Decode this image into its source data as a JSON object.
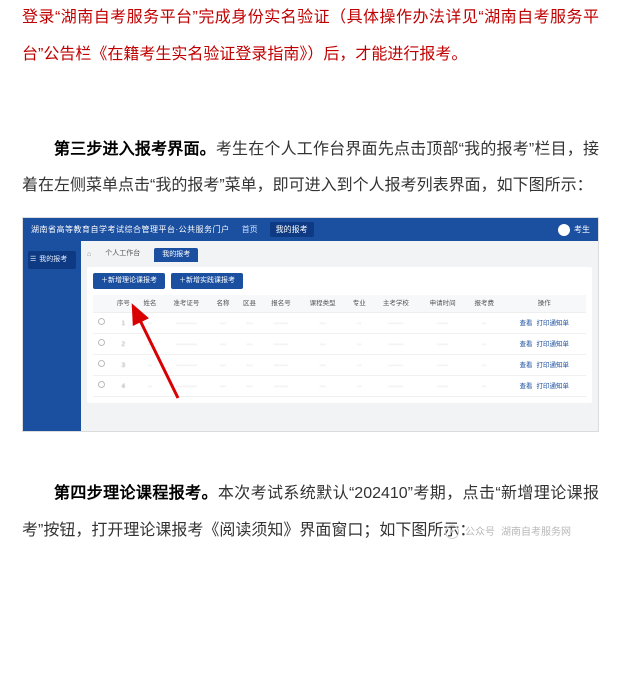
{
  "intro_red": "登录“湖南自考服务平台”完成身份实名验证（具体操作办法详见“湖南自考服务平台”公告栏《在籍考生实名验证登录指南》）后，才能进行报考。",
  "step3": {
    "title": "第三步进入报考界面。",
    "body": "考生在个人工作台界面先点击顶部“我的报考”栏目，接着在左侧菜单点击“我的报考”菜单，即可进入到个人报考列表界面，如下图所示："
  },
  "step4": {
    "title": "第四步理论课程报考。",
    "body": "本次考试系统默认“202410”考期，点击“新增理论课报考”按钮，打开理论课报考《阅读须知》界面窗口；如下图所示："
  },
  "shot": {
    "platform_title": "湖南省高等教育自学考试综合管理平台·公共服务门户",
    "top_nav": [
      "首页",
      "我的报考"
    ],
    "avatar_name": "考生",
    "side_item": "我的报考",
    "crumb_tab1": "个人工作台",
    "crumb_tab2": "我的报考",
    "btn1": "＋新增理论课报考",
    "btn2": "＋新增实践课报考",
    "columns": [
      "序号",
      "姓名",
      "准考证号",
      "名称",
      "区县",
      "报名号",
      "课程类型",
      "专业",
      "主考学校",
      "申请时间",
      "报考费",
      "操作"
    ],
    "rows": [
      [
        "1",
        "··",
        "··········",
        "···",
        "···",
        "·······",
        "···",
        "··",
        "·······",
        "·····",
        "··",
        "查看  打印通知单"
      ],
      [
        "2",
        "··",
        "··········",
        "···",
        "···",
        "·······",
        "···",
        "··",
        "·······",
        "·····",
        "··",
        "查看  打印通知单"
      ],
      [
        "3",
        "··",
        "··········",
        "···",
        "···",
        "·······",
        "···",
        "··",
        "·······",
        "·····",
        "··",
        "查看  打印通知单"
      ],
      [
        "4",
        "··",
        "··········",
        "···",
        "···",
        "·······",
        "···",
        "··",
        "·······",
        "·····",
        "··",
        "查看  打印通知单"
      ]
    ],
    "op_view": "查看",
    "op_print": "打印通知单"
  },
  "watermark": {
    "label": "公众号",
    "name": "湖南自考服务网"
  },
  "colors": {
    "red": "#c00000",
    "blue": "#1b4fa0",
    "text": "#333333",
    "gray_bg": "#f2f3f5"
  }
}
